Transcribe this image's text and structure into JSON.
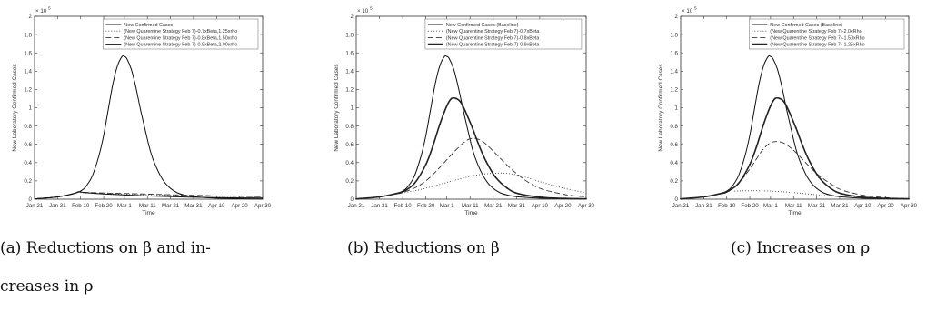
{
  "chart_data": [
    {
      "type": "line",
      "caption": "(a) Reductions on β and increases in ρ",
      "caption_lines": [
        "(a) Reductions on β and in-",
        "creases in ρ"
      ],
      "xlabel": "Time",
      "ylabel": "New Laboratory Confirmed Cases",
      "y_multiplier": "× 10",
      "y_exponent": "5",
      "ylim": [
        0,
        2
      ],
      "yticks": [
        "0",
        "0.2",
        "0.4",
        "0.6",
        "0.8",
        "1",
        "1.2",
        "1.4",
        "1.6",
        "1.8",
        "2"
      ],
      "xlim": [
        0,
        99
      ],
      "xticks": [
        {
          "label": "Jan 21",
          "day": 0
        },
        {
          "label": "Jan 31",
          "day": 10
        },
        {
          "label": "Feb 10",
          "day": 20
        },
        {
          "label": "Feb 20",
          "day": 30
        },
        {
          "label": "Mar 1",
          "day": 39
        },
        {
          "label": "Mar 11",
          "day": 49
        },
        {
          "label": "Mar 21",
          "day": 59
        },
        {
          "label": "Mar 31",
          "day": 69
        },
        {
          "label": "Apr 10",
          "day": 79
        },
        {
          "label": "Apr 20",
          "day": 89
        },
        {
          "label": "Apr 30",
          "day": 99
        }
      ],
      "legend": "top-right",
      "series": [
        {
          "name": "New Confirmed Cases",
          "style": "solid",
          "x": [
            0,
            10,
            18,
            20,
            22,
            25,
            28,
            30,
            32,
            34,
            36,
            38,
            39,
            40,
            42,
            44,
            46,
            48,
            50,
            52,
            55,
            58,
            62,
            66,
            70,
            80,
            90,
            99
          ],
          "y": [
            0.003,
            0.025,
            0.07,
            0.09,
            0.13,
            0.25,
            0.48,
            0.7,
            0.98,
            1.26,
            1.46,
            1.56,
            1.56,
            1.54,
            1.42,
            1.22,
            0.98,
            0.76,
            0.55,
            0.4,
            0.24,
            0.14,
            0.07,
            0.04,
            0.025,
            0.01,
            0.005,
            0.003
          ]
        },
        {
          "name": "(New Quarentine Strategy Feb 7)-0.7xBeta,1.25xrho",
          "style": "dotted",
          "x": [
            0,
            10,
            17,
            19,
            21,
            25,
            30,
            40,
            50,
            60,
            70,
            80,
            90,
            99
          ],
          "y": [
            0.003,
            0.025,
            0.06,
            0.075,
            0.07,
            0.064,
            0.06,
            0.055,
            0.048,
            0.042,
            0.037,
            0.033,
            0.03,
            0.028
          ]
        },
        {
          "name": "(New Quarentine Strategy Feb 7)-0.8xBeta,1.50xrho",
          "style": "dashed",
          "x": [
            0,
            10,
            17,
            19,
            21,
            25,
            30,
            40,
            50,
            60,
            70,
            80,
            90,
            99
          ],
          "y": [
            0.003,
            0.025,
            0.06,
            0.078,
            0.075,
            0.072,
            0.068,
            0.062,
            0.055,
            0.048,
            0.042,
            0.036,
            0.031,
            0.027
          ]
        },
        {
          "name": "(New Quarentine Strategy Feb 7)-0.9xBeta,2.00xrho",
          "style": "solid",
          "x": [
            0,
            10,
            17,
            19,
            21,
            25,
            30,
            40,
            50,
            60,
            70,
            80,
            90,
            99
          ],
          "y": [
            0.003,
            0.025,
            0.06,
            0.082,
            0.075,
            0.066,
            0.058,
            0.045,
            0.035,
            0.027,
            0.021,
            0.017,
            0.014,
            0.012
          ]
        }
      ]
    },
    {
      "type": "line",
      "caption": "(b) Reductions on β",
      "caption_lines": [
        "(b) Reductions on β"
      ],
      "xlabel": "Time",
      "ylabel": "New Laboratory Confirmed Cases",
      "y_multiplier": "× 10",
      "y_exponent": "5",
      "ylim": [
        0,
        2
      ],
      "yticks": [
        "0",
        "0.2",
        "0.4",
        "0.6",
        "0.8",
        "1",
        "1.2",
        "1.4",
        "1.6",
        "1.8",
        "2"
      ],
      "xlim": [
        0,
        99
      ],
      "xticks": [
        {
          "label": "Jan 21",
          "day": 0
        },
        {
          "label": "Jan 31",
          "day": 10
        },
        {
          "label": "Feb 10",
          "day": 20
        },
        {
          "label": "Feb 20",
          "day": 30
        },
        {
          "label": "Mar 1",
          "day": 39
        },
        {
          "label": "Mar 11",
          "day": 49
        },
        {
          "label": "Mar 21",
          "day": 59
        },
        {
          "label": "Mar 31",
          "day": 69
        },
        {
          "label": "Apr 10",
          "day": 79
        },
        {
          "label": "Apr 20",
          "day": 89
        },
        {
          "label": "Apr 30",
          "day": 99
        }
      ],
      "legend": "top-right",
      "series": [
        {
          "name": "New Confirmed Cases (Baseline)",
          "style": "solid",
          "x": [
            0,
            10,
            18,
            20,
            22,
            25,
            28,
            30,
            32,
            34,
            36,
            38,
            39,
            40,
            42,
            44,
            46,
            48,
            50,
            52,
            55,
            58,
            62,
            66,
            70,
            80,
            90,
            99
          ],
          "y": [
            0.003,
            0.025,
            0.07,
            0.09,
            0.13,
            0.25,
            0.48,
            0.7,
            0.98,
            1.26,
            1.46,
            1.56,
            1.56,
            1.54,
            1.42,
            1.22,
            0.98,
            0.76,
            0.55,
            0.4,
            0.24,
            0.14,
            0.07,
            0.04,
            0.025,
            0.01,
            0.005,
            0.003
          ]
        },
        {
          "name": "(New Quarentine Strategy Feb 7)-0.7xBeta",
          "style": "dotted",
          "x": [
            0,
            10,
            17,
            20,
            25,
            30,
            35,
            40,
            45,
            50,
            55,
            60,
            63,
            66,
            70,
            75,
            80,
            85,
            90,
            95,
            99
          ],
          "y": [
            0.003,
            0.025,
            0.06,
            0.07,
            0.09,
            0.12,
            0.155,
            0.19,
            0.225,
            0.255,
            0.275,
            0.285,
            0.285,
            0.28,
            0.26,
            0.225,
            0.185,
            0.15,
            0.115,
            0.09,
            0.07
          ]
        },
        {
          "name": "(New Quarentine Strategy Feb 7)-0.8xBeta",
          "style": "dashed",
          "x": [
            0,
            10,
            17,
            20,
            25,
            30,
            35,
            40,
            45,
            48,
            50,
            52,
            55,
            60,
            65,
            70,
            75,
            80,
            90,
            99
          ],
          "y": [
            0.003,
            0.025,
            0.06,
            0.075,
            0.12,
            0.2,
            0.32,
            0.46,
            0.59,
            0.65,
            0.665,
            0.66,
            0.62,
            0.5,
            0.37,
            0.26,
            0.17,
            0.11,
            0.05,
            0.025
          ]
        },
        {
          "name": "(New Quarentine Strategy Feb 7)-0.9xBeta",
          "style": "solid-marker",
          "x": [
            0,
            10,
            17,
            20,
            25,
            30,
            33,
            36,
            39,
            41,
            43,
            45,
            47,
            50,
            53,
            56,
            60,
            65,
            70,
            80,
            90,
            99
          ],
          "y": [
            0.003,
            0.025,
            0.06,
            0.08,
            0.17,
            0.38,
            0.58,
            0.82,
            1.02,
            1.1,
            1.1,
            1.06,
            0.96,
            0.78,
            0.58,
            0.41,
            0.24,
            0.12,
            0.06,
            0.02,
            0.008,
            0.004
          ]
        }
      ]
    },
    {
      "type": "line",
      "caption": "(c) Increases on ρ",
      "caption_lines": [
        "(c) Increases on ρ"
      ],
      "xlabel": "Time",
      "ylabel": "New Laboratory Confirmed Cases",
      "y_multiplier": "× 10",
      "y_exponent": "5",
      "ylim": [
        0,
        2
      ],
      "yticks": [
        "0",
        "0.2",
        "0.4",
        "0.6",
        "0.8",
        "1",
        "1.2",
        "1.4",
        "1.6",
        "1.8",
        "2"
      ],
      "xlim": [
        0,
        99
      ],
      "xticks": [
        {
          "label": "Jan 21",
          "day": 0
        },
        {
          "label": "Jan 31",
          "day": 10
        },
        {
          "label": "Feb 10",
          "day": 20
        },
        {
          "label": "Feb 20",
          "day": 30
        },
        {
          "label": "Mar 1",
          "day": 39
        },
        {
          "label": "Mar 11",
          "day": 49
        },
        {
          "label": "Mar 21",
          "day": 59
        },
        {
          "label": "Mar 31",
          "day": 69
        },
        {
          "label": "Apr 10",
          "day": 79
        },
        {
          "label": "Apr 20",
          "day": 89
        },
        {
          "label": "Apr 30",
          "day": 99
        }
      ],
      "legend": "top-right",
      "series": [
        {
          "name": "New Confirmed Cases (Baseline)",
          "style": "solid",
          "x": [
            0,
            10,
            18,
            20,
            22,
            25,
            28,
            30,
            32,
            34,
            36,
            38,
            39,
            40,
            42,
            44,
            46,
            48,
            50,
            52,
            55,
            58,
            62,
            66,
            70,
            80,
            90,
            99
          ],
          "y": [
            0.003,
            0.025,
            0.07,
            0.09,
            0.13,
            0.25,
            0.48,
            0.7,
            0.98,
            1.26,
            1.46,
            1.56,
            1.56,
            1.54,
            1.42,
            1.22,
            0.98,
            0.76,
            0.55,
            0.4,
            0.24,
            0.14,
            0.07,
            0.04,
            0.025,
            0.01,
            0.005,
            0.003
          ]
        },
        {
          "name": "(New Quarentine Strategy Feb 7)-2.0xRho",
          "style": "dotted",
          "x": [
            0,
            10,
            17,
            20,
            25,
            30,
            35,
            40,
            45,
            50,
            55,
            60,
            65,
            70,
            80,
            90,
            99
          ],
          "y": [
            0.003,
            0.025,
            0.06,
            0.085,
            0.09,
            0.092,
            0.092,
            0.088,
            0.08,
            0.07,
            0.058,
            0.046,
            0.035,
            0.026,
            0.014,
            0.007,
            0.004
          ]
        },
        {
          "name": "(New Quarentine Strategy Feb 7)-1.50xRho",
          "style": "dashed",
          "x": [
            0,
            10,
            17,
            20,
            25,
            30,
            35,
            38,
            40,
            42,
            44,
            46,
            50,
            55,
            60,
            65,
            70,
            80,
            90,
            99
          ],
          "y": [
            0.003,
            0.025,
            0.06,
            0.08,
            0.17,
            0.33,
            0.52,
            0.6,
            0.625,
            0.63,
            0.62,
            0.595,
            0.51,
            0.38,
            0.26,
            0.17,
            0.1,
            0.04,
            0.015,
            0.006
          ]
        },
        {
          "name": "(New Quarentine Strategy Feb 7)-1.25xRho",
          "style": "solid-marker",
          "x": [
            0,
            10,
            17,
            20,
            25,
            30,
            33,
            36,
            39,
            41,
            43,
            45,
            47,
            50,
            53,
            56,
            60,
            65,
            70,
            80,
            90,
            99
          ],
          "y": [
            0.003,
            0.025,
            0.06,
            0.08,
            0.17,
            0.38,
            0.58,
            0.82,
            1.02,
            1.1,
            1.1,
            1.06,
            0.96,
            0.78,
            0.58,
            0.41,
            0.24,
            0.12,
            0.06,
            0.02,
            0.008,
            0.004
          ]
        }
      ]
    }
  ]
}
